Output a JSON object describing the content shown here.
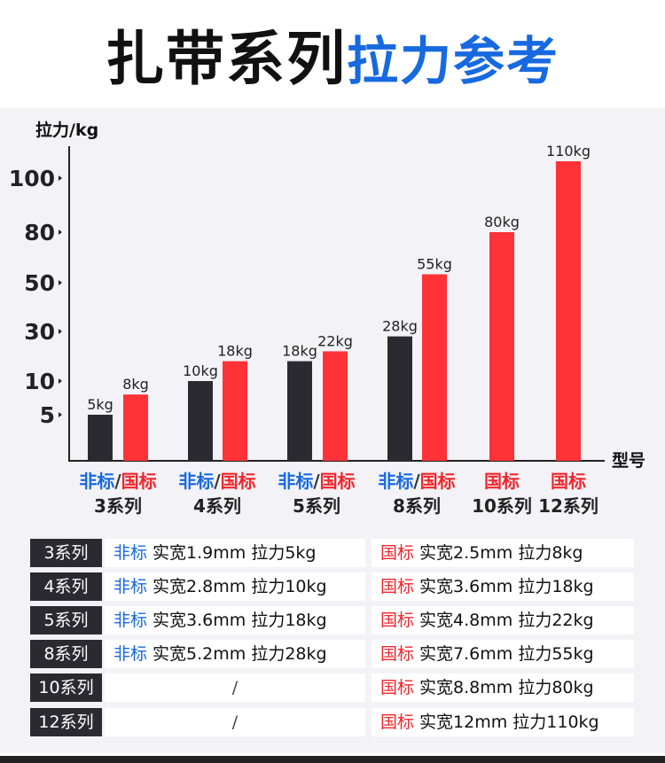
{
  "title": {
    "part1": "扎带系列",
    "part2": "拉力参考"
  },
  "chart_data": {
    "type": "bar",
    "ylabel": "拉力/kg",
    "xlabel": "型号",
    "yticks": [
      5,
      10,
      30,
      50,
      80,
      100
    ],
    "y_scale": "non-uniform",
    "categories": [
      {
        "std": "非标",
        "sep": "/",
        "gb": "国标",
        "name": "3系列"
      },
      {
        "std": "非标",
        "sep": "/",
        "gb": "国标",
        "name": "4系列"
      },
      {
        "std": "非标",
        "sep": "/",
        "gb": "国标",
        "name": "5系列"
      },
      {
        "std": "非标",
        "sep": "/",
        "gb": "国标",
        "name": "8系列"
      },
      {
        "std": "",
        "sep": "",
        "gb": "国标",
        "name": "10系列"
      },
      {
        "std": "",
        "sep": "",
        "gb": "国标",
        "name": "12系列"
      }
    ],
    "series": [
      {
        "name": "非标",
        "color": "#2a2a30",
        "values": [
          5,
          10,
          18,
          28,
          null,
          null
        ],
        "labels": [
          "5kg",
          "10kg",
          "18kg",
          "28kg",
          null,
          null
        ]
      },
      {
        "name": "国标",
        "color": "#ff3237",
        "values": [
          8,
          18,
          22,
          55,
          80,
          110
        ],
        "labels": [
          "8kg",
          "18kg",
          "22kg",
          "55kg",
          "80kg",
          "110kg"
        ]
      }
    ]
  },
  "table": {
    "rows": [
      {
        "label": "3系列",
        "left_tag": "非标",
        "left": "实宽1.9mm 拉力5kg",
        "right_tag": "国标",
        "right": "实宽2.5mm 拉力8kg"
      },
      {
        "label": "4系列",
        "left_tag": "非标",
        "left": "实宽2.8mm 拉力10kg",
        "right_tag": "国标",
        "right": "实宽3.6mm 拉力18kg"
      },
      {
        "label": "5系列",
        "left_tag": "非标",
        "left": "实宽3.6mm 拉力18kg",
        "right_tag": "国标",
        "right": "实宽4.8mm 拉力22kg"
      },
      {
        "label": "8系列",
        "left_tag": "非标",
        "left": "实宽5.2mm 拉力28kg",
        "right_tag": "国标",
        "right": "实宽7.6mm 拉力55kg"
      },
      {
        "label": "10系列",
        "left_tag": "",
        "left": "/",
        "right_tag": "国标",
        "right": "实宽8.8mm 拉力80kg"
      },
      {
        "label": "12系列",
        "left_tag": "",
        "left": "/",
        "right_tag": "国标",
        "right": "实宽12mm 拉力110kg"
      }
    ]
  }
}
